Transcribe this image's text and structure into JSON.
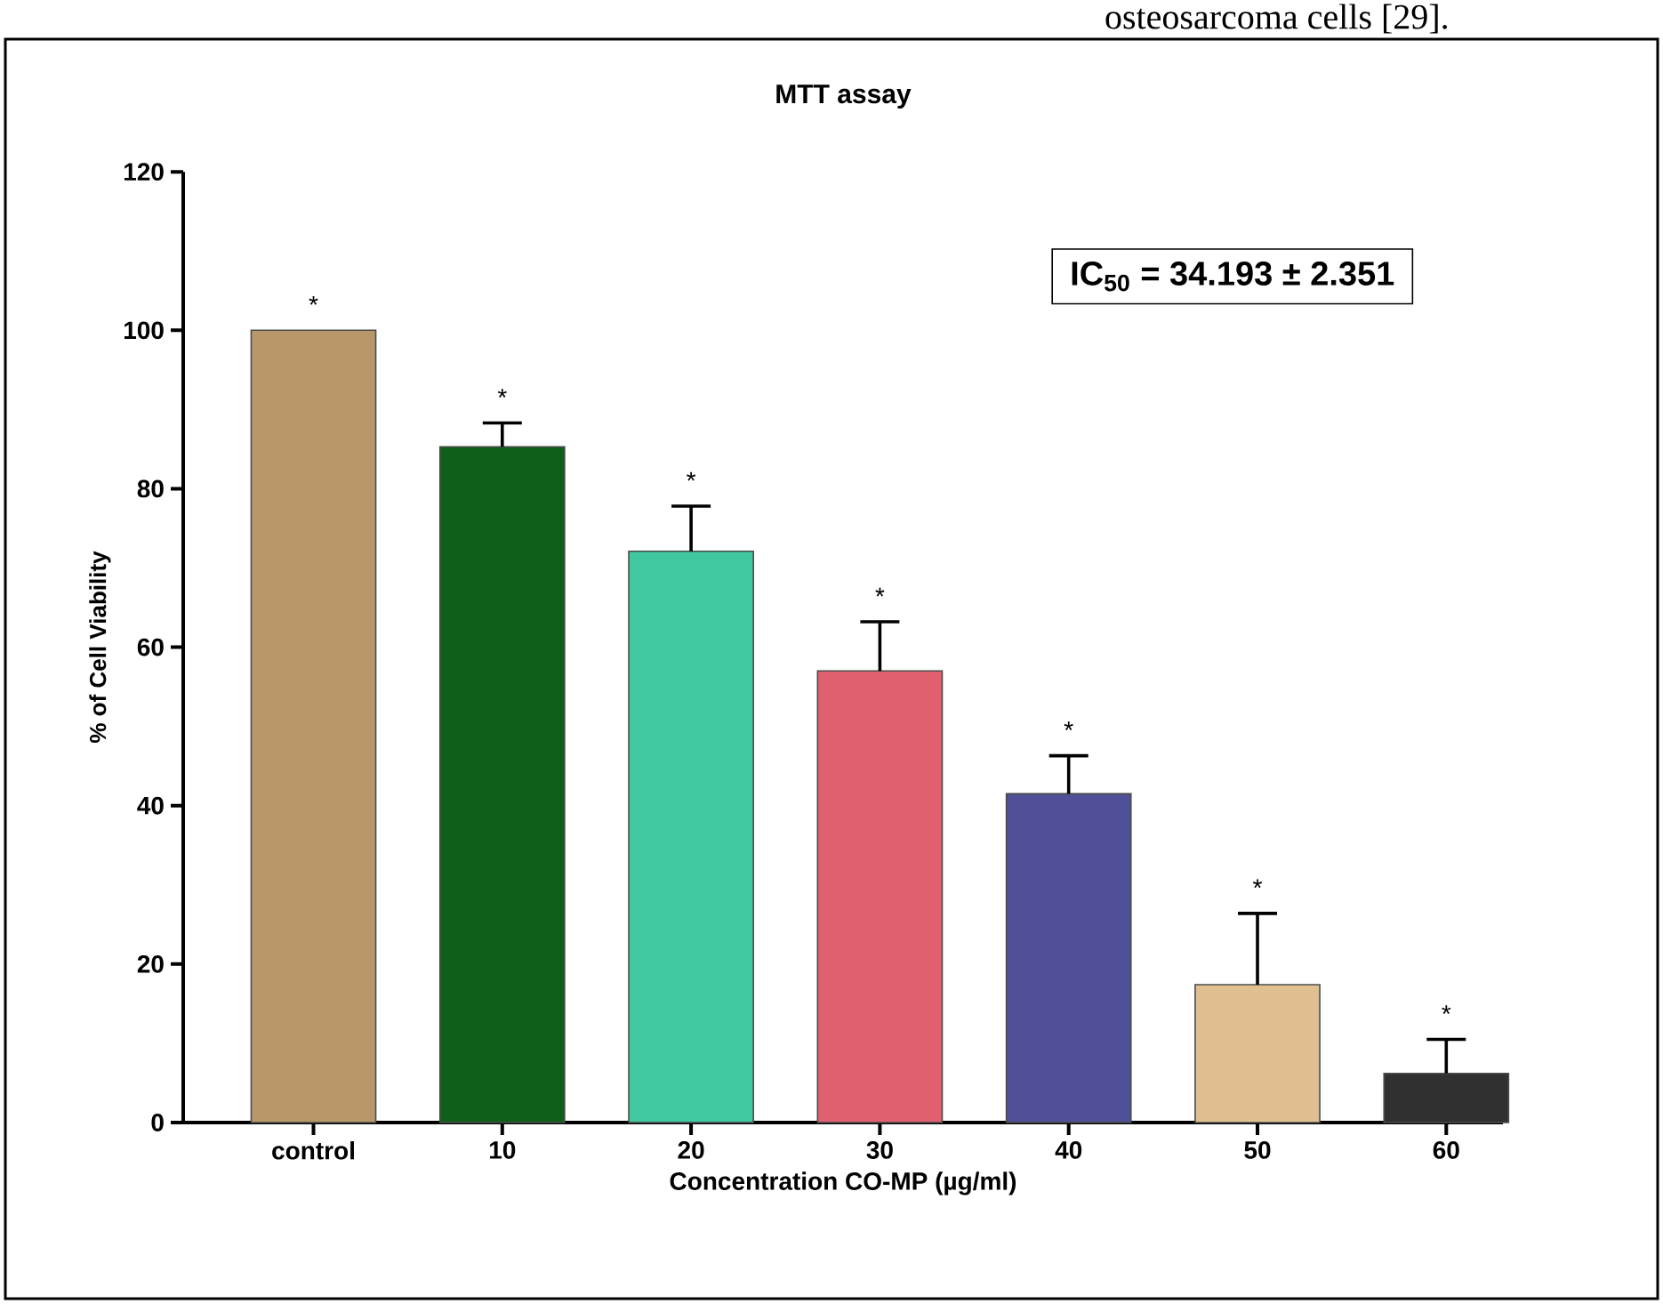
{
  "chart_data": {
    "type": "bar",
    "title": "MTT assay",
    "xlabel": "Concentration CO-MP (µg/ml)",
    "ylabel": "% of Cell Viability",
    "categories": [
      "control",
      "10",
      "20",
      "30",
      "40",
      "50",
      "60"
    ],
    "values": [
      100,
      85.3,
      72.1,
      57.0,
      41.5,
      17.4,
      6.2
    ],
    "errors": [
      null,
      3.0,
      5.7,
      6.2,
      4.8,
      9.0,
      4.3
    ],
    "colors": [
      "#b89868",
      "#0f5f1a",
      "#40c8a0",
      "#e06070",
      "#505098",
      "#e0c090",
      "#303030"
    ],
    "ylim": [
      0,
      120
    ],
    "yticks": [
      0,
      20,
      40,
      60,
      80,
      100,
      120
    ],
    "annotations": [
      "IC$_{50}$ = 34.193 ± 2.351",
      "*",
      "*",
      "*",
      "*",
      "*",
      "*",
      "*",
      "osteosarcoma cells [29]."
    ]
  }
}
